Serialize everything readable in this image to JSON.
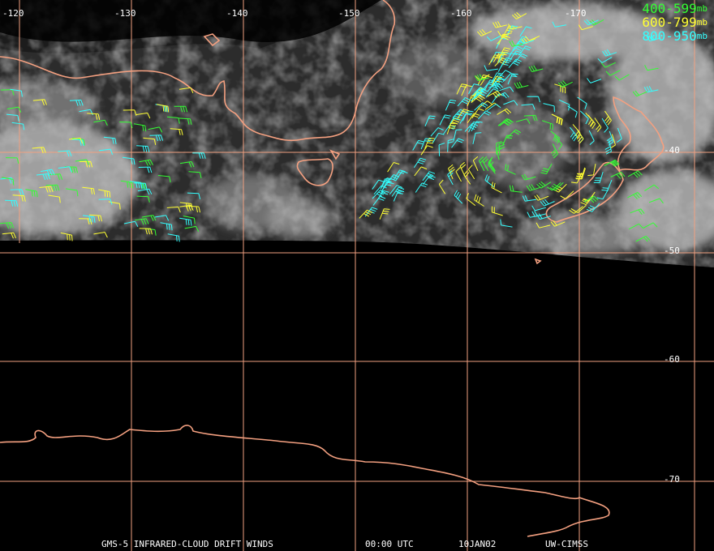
{
  "longitude_labels": [
    "-120",
    "-130",
    "-140",
    "-150",
    "-160",
    "-170"
  ],
  "latitude_labels": [
    "-40",
    "-50",
    "-60",
    "-70"
  ],
  "legend": [
    {
      "range": "400-599",
      "unit": "mb"
    },
    {
      "range": "600-799",
      "unit": "mb"
    },
    {
      "range": "800-950",
      "unit": "mb"
    }
  ],
  "footer": {
    "product": "GMS-5 INFRARED-CLOUD DRIFT WINDS",
    "time": "00:00 UTC",
    "date": "10JAN02",
    "source": "UW-CIMSS"
  }
}
